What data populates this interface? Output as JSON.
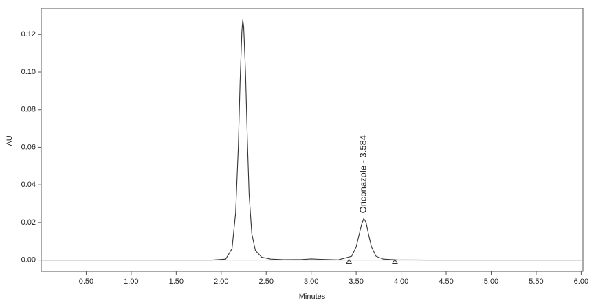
{
  "chart_data": {
    "type": "line",
    "x_label": "Minutes",
    "y_label": "AU",
    "x": [
      0,
      1.9,
      2.05,
      2.12,
      2.16,
      2.19,
      2.21,
      2.23,
      2.24,
      2.25,
      2.27,
      2.29,
      2.31,
      2.34,
      2.38,
      2.45,
      2.55,
      2.7,
      2.9,
      3.0,
      3.1,
      3.3,
      3.45,
      3.5,
      3.53,
      3.56,
      3.584,
      3.61,
      3.64,
      3.67,
      3.72,
      3.8,
      3.95,
      4.3,
      6.0
    ],
    "series": [
      {
        "color": "#333333",
        "values": [
          0,
          0,
          0.0005,
          0.006,
          0.025,
          0.06,
          0.095,
          0.122,
          0.128,
          0.124,
          0.1,
          0.065,
          0.035,
          0.014,
          0.005,
          0.0015,
          0.0005,
          0.0002,
          0.0003,
          0.0006,
          0.0004,
          0.0001,
          0.002,
          0.007,
          0.013,
          0.019,
          0.022,
          0.02,
          0.013,
          0.007,
          0.002,
          0.0005,
          0.0001,
          0,
          0
        ]
      }
    ],
    "integration_marks": {
      "x": [
        3.42,
        3.93
      ],
      "values": [
        -0.0007,
        -0.0007
      ]
    },
    "annotation": {
      "text": "Oriconazole - 3.584",
      "x": 3.584
    },
    "xlim": [
      0,
      6.02
    ],
    "ylim": [
      -0.006,
      0.134
    ],
    "xticks": [
      {
        "value": 0.5,
        "label": "0.50"
      },
      {
        "value": 1,
        "label": "1.00"
      },
      {
        "value": 1.5,
        "label": "1.50"
      },
      {
        "value": 2,
        "label": "2.00"
      },
      {
        "value": 2.5,
        "label": "2.50"
      },
      {
        "value": 3,
        "label": "3.00"
      },
      {
        "value": 3.5,
        "label": "3.50"
      },
      {
        "value": 4,
        "label": "4.00"
      },
      {
        "value": 4.5,
        "label": "4.50"
      },
      {
        "value": 5,
        "label": "5.00"
      },
      {
        "value": 5.5,
        "label": "5.50"
      },
      {
        "value": 6,
        "label": "6.00"
      }
    ],
    "yticks": [
      {
        "value": 0,
        "label": "0.00"
      },
      0.02,
      0.04,
      0.06,
      0.08,
      {
        "value": 0.1,
        "label": "0.10"
      },
      0.12
    ]
  }
}
